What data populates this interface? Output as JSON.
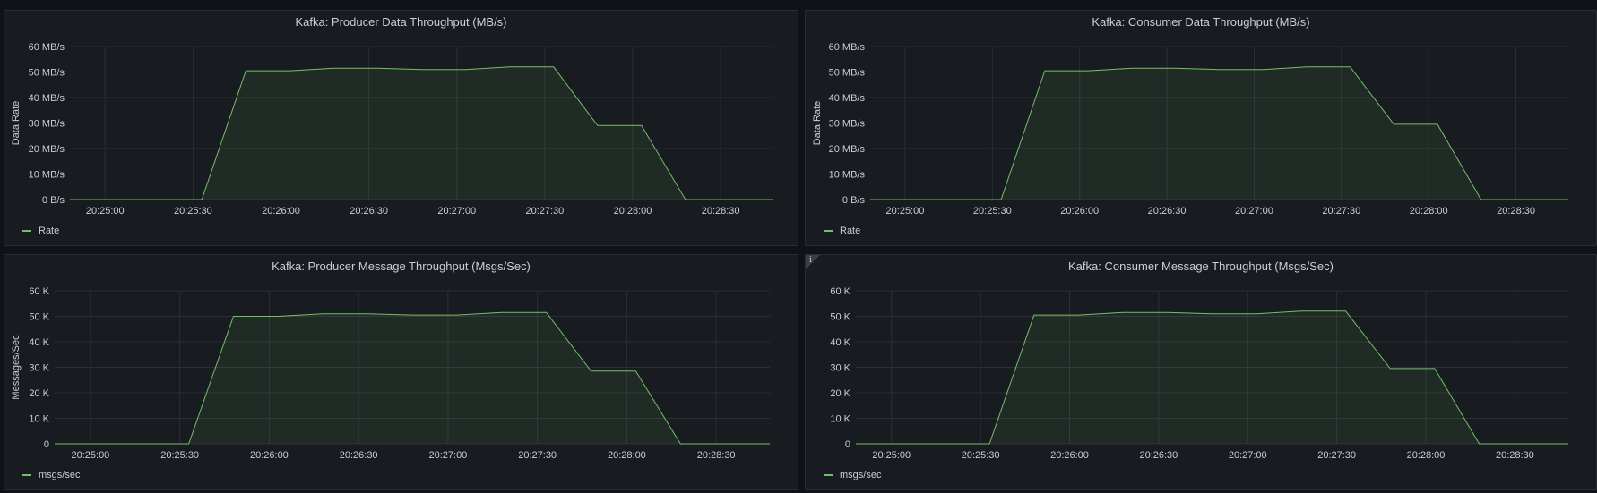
{
  "series_color": "#73bf69",
  "fill_color": "#73bf69",
  "x_ticks": [
    "20:25:00",
    "20:25:30",
    "20:26:00",
    "20:26:30",
    "20:27:00",
    "20:27:30",
    "20:28:00",
    "20:28:30"
  ],
  "chart_data": [
    {
      "type": "area",
      "title": "Kafka: Producer Data Throughput (MB/s)",
      "ylabel": "Data Rate",
      "xlabel": "",
      "yticks": [
        "0 B/s",
        "10 MB/s",
        "20 MB/s",
        "30 MB/s",
        "40 MB/s",
        "50 MB/s",
        "60 MB/s"
      ],
      "ylim": [
        0,
        60
      ],
      "xlim": [
        "20:24:48",
        "20:28:48"
      ],
      "grid": true,
      "legend_placement": "bottom-left",
      "series": [
        {
          "name": "Rate",
          "x": [
            "20:24:48",
            "20:25:33",
            "20:25:48",
            "20:26:03",
            "20:26:18",
            "20:26:33",
            "20:26:48",
            "20:27:03",
            "20:27:18",
            "20:27:33",
            "20:27:48",
            "20:28:03",
            "20:28:18",
            "20:28:48"
          ],
          "values": [
            0,
            0,
            50.5,
            50.5,
            51.5,
            51.5,
            51,
            51,
            52,
            52,
            29,
            29,
            0,
            0
          ]
        }
      ]
    },
    {
      "type": "area",
      "title": "Kafka: Consumer Data Throughput (MB/s)",
      "ylabel": "Data Rate",
      "xlabel": "",
      "yticks": [
        "0 B/s",
        "10 MB/s",
        "20 MB/s",
        "30 MB/s",
        "40 MB/s",
        "50 MB/s",
        "60 MB/s"
      ],
      "ylim": [
        0,
        60
      ],
      "xlim": [
        "20:24:48",
        "20:28:48"
      ],
      "grid": true,
      "legend_placement": "bottom-left",
      "series": [
        {
          "name": "Rate",
          "x": [
            "20:24:48",
            "20:25:33",
            "20:25:48",
            "20:26:03",
            "20:26:18",
            "20:26:33",
            "20:26:48",
            "20:27:03",
            "20:27:18",
            "20:27:33",
            "20:27:48",
            "20:28:03",
            "20:28:18",
            "20:28:48"
          ],
          "values": [
            0,
            0,
            50.5,
            50.5,
            51.5,
            51.5,
            51,
            51,
            52,
            52,
            29.5,
            29.5,
            0,
            0
          ]
        }
      ]
    },
    {
      "type": "area",
      "title": "Kafka: Producer Message Throughput (Msgs/Sec)",
      "ylabel": "Messages/Sec",
      "xlabel": "",
      "yticks": [
        "0",
        "10 K",
        "20 K",
        "30 K",
        "40 K",
        "50 K",
        "60 K"
      ],
      "ylim": [
        0,
        60000
      ],
      "xlim": [
        "20:24:48",
        "20:28:48"
      ],
      "grid": true,
      "legend_placement": "bottom-left",
      "series": [
        {
          "name": "msgs/sec",
          "x": [
            "20:24:48",
            "20:25:33",
            "20:25:48",
            "20:26:03",
            "20:26:18",
            "20:26:33",
            "20:26:48",
            "20:27:03",
            "20:27:18",
            "20:27:33",
            "20:27:48",
            "20:28:03",
            "20:28:18",
            "20:28:48"
          ],
          "values": [
            0,
            0,
            50000,
            50000,
            51000,
            51000,
            50500,
            50500,
            51500,
            51500,
            28500,
            28500,
            0,
            0
          ]
        }
      ]
    },
    {
      "type": "area",
      "title": "Kafka: Consumer Message Throughput (Msgs/Sec)",
      "ylabel": "",
      "xlabel": "",
      "yticks": [
        "0",
        "10 K",
        "20 K",
        "30 K",
        "40 K",
        "50 K",
        "60 K"
      ],
      "ylim": [
        0,
        60000
      ],
      "xlim": [
        "20:24:48",
        "20:28:48"
      ],
      "grid": true,
      "legend_placement": "bottom-left",
      "series": [
        {
          "name": "msgs/sec",
          "x": [
            "20:24:48",
            "20:25:33",
            "20:25:48",
            "20:26:03",
            "20:26:18",
            "20:26:33",
            "20:26:48",
            "20:27:03",
            "20:27:18",
            "20:27:33",
            "20:27:48",
            "20:28:03",
            "20:28:18",
            "20:28:48"
          ],
          "values": [
            0,
            0,
            50500,
            50500,
            51500,
            51500,
            51000,
            51000,
            52000,
            52000,
            29500,
            29500,
            0,
            0
          ]
        }
      ]
    }
  ]
}
